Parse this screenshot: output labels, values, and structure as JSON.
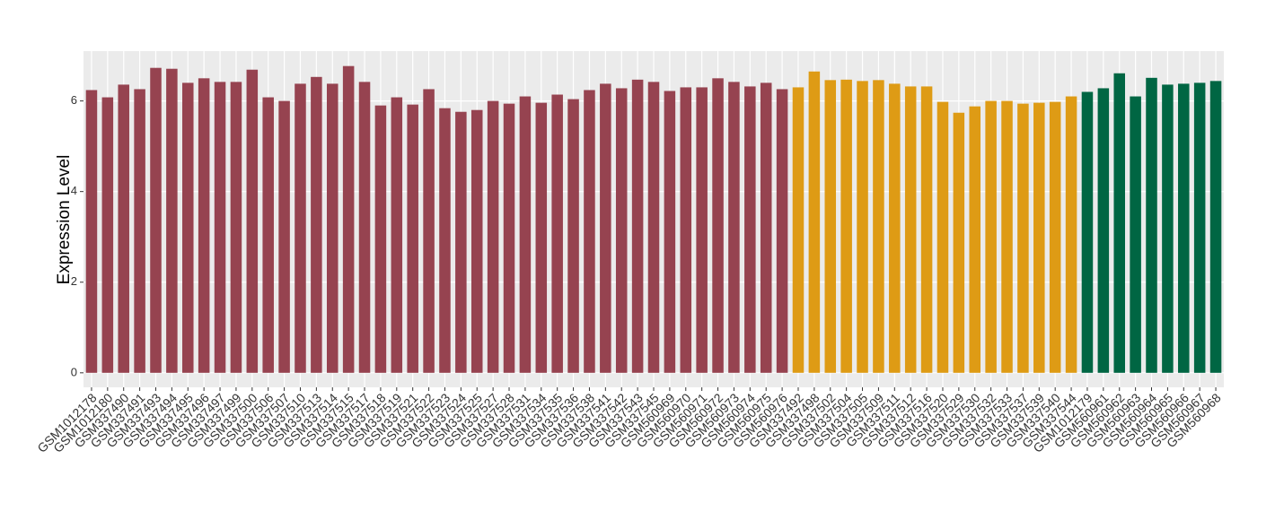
{
  "chart_data": {
    "type": "bar",
    "y_label": "Expression Level",
    "categories": [
      "GSM1012178",
      "GSM1012180",
      "GSM337490",
      "GSM337491",
      "GSM337493",
      "GSM337494",
      "GSM337495",
      "GSM337496",
      "GSM337497",
      "GSM337499",
      "GSM337500",
      "GSM337506",
      "GSM337507",
      "GSM337510",
      "GSM337513",
      "GSM337514",
      "GSM337515",
      "GSM337517",
      "GSM337518",
      "GSM337519",
      "GSM337521",
      "GSM337522",
      "GSM337523",
      "GSM337524",
      "GSM337525",
      "GSM337527",
      "GSM337528",
      "GSM337531",
      "GSM337534",
      "GSM337535",
      "GSM337536",
      "GSM337538",
      "GSM337541",
      "GSM337542",
      "GSM337543",
      "GSM337545",
      "GSM560969",
      "GSM560970",
      "GSM560971",
      "GSM560972",
      "GSM560973",
      "GSM560974",
      "GSM560975",
      "GSM560976",
      "GSM337492",
      "GSM337498",
      "GSM337502",
      "GSM337504",
      "GSM337505",
      "GSM337509",
      "GSM337511",
      "GSM337512",
      "GSM337516",
      "GSM337520",
      "GSM337529",
      "GSM337530",
      "GSM337532",
      "GSM337533",
      "GSM337537",
      "GSM337539",
      "GSM337540",
      "GSM337544",
      "GSM1012179",
      "GSM560961",
      "GSM560962",
      "GSM560963",
      "GSM560964",
      "GSM560965",
      "GSM560966",
      "GSM560967",
      "GSM560968"
    ],
    "values": [
      6.24,
      6.08,
      6.36,
      6.26,
      6.73,
      6.71,
      6.4,
      6.5,
      6.42,
      6.42,
      6.69,
      6.08,
      6.0,
      6.38,
      6.53,
      6.38,
      6.77,
      6.42,
      5.9,
      6.08,
      5.92,
      6.26,
      5.84,
      5.76,
      5.8,
      6.0,
      5.94,
      6.1,
      5.96,
      6.14,
      6.04,
      6.24,
      6.38,
      6.28,
      6.47,
      6.42,
      6.22,
      6.3,
      6.3,
      6.5,
      6.42,
      6.32,
      6.4,
      6.26,
      6.3,
      6.65,
      6.46,
      6.47,
      6.44,
      6.46,
      6.38,
      6.32,
      6.32,
      5.98,
      5.74,
      5.88,
      6.0,
      6.0,
      5.94,
      5.96,
      5.98,
      6.1,
      6.2,
      6.28,
      6.61,
      6.1,
      6.51,
      6.36,
      6.38,
      6.4,
      6.44
    ],
    "colors": [
      "#964350",
      "#964350",
      "#964350",
      "#964350",
      "#964350",
      "#964350",
      "#964350",
      "#964350",
      "#964350",
      "#964350",
      "#964350",
      "#964350",
      "#964350",
      "#964350",
      "#964350",
      "#964350",
      "#964350",
      "#964350",
      "#964350",
      "#964350",
      "#964350",
      "#964350",
      "#964350",
      "#964350",
      "#964350",
      "#964350",
      "#964350",
      "#964350",
      "#964350",
      "#964350",
      "#964350",
      "#964350",
      "#964350",
      "#964350",
      "#964350",
      "#964350",
      "#964350",
      "#964350",
      "#964350",
      "#964350",
      "#964350",
      "#964350",
      "#964350",
      "#964350",
      "#de9b15",
      "#de9b15",
      "#de9b15",
      "#de9b15",
      "#de9b15",
      "#de9b15",
      "#de9b15",
      "#de9b15",
      "#de9b15",
      "#de9b15",
      "#de9b15",
      "#de9b15",
      "#de9b15",
      "#de9b15",
      "#de9b15",
      "#de9b15",
      "#de9b15",
      "#de9b15",
      "#006643",
      "#006643",
      "#006643",
      "#006643",
      "#006643",
      "#006643",
      "#006643",
      "#006643",
      "#006643"
    ],
    "ylim": [
      -0.32,
      7.1
    ],
    "yticks": [
      0,
      2,
      4,
      6
    ],
    "grid": true
  }
}
